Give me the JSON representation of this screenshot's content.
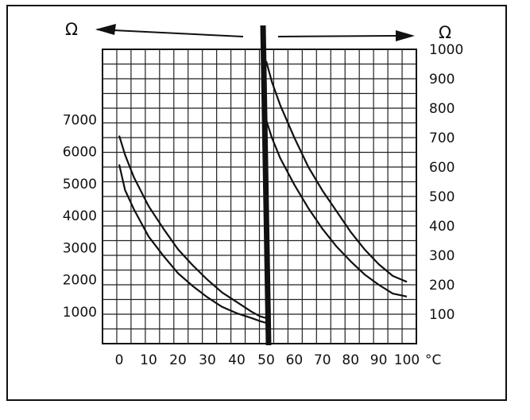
{
  "chart_data": {
    "type": "line",
    "title": "",
    "grid": true,
    "x_unit_label": "°C",
    "x_ticks": [
      0,
      10,
      20,
      30,
      40,
      50,
      60,
      70,
      80,
      90,
      100
    ],
    "x_tick_labels": [
      "0",
      "10",
      "20",
      "30",
      "40",
      "50",
      "60",
      "70",
      "80",
      "90",
      "100"
    ],
    "left_axis": {
      "unit_label": "Ω",
      "x_range": [
        0,
        50
      ],
      "ylim": [
        0,
        9200
      ],
      "ticks": [
        1000,
        2000,
        3000,
        4000,
        5000,
        6000,
        7000
      ],
      "tick_labels": [
        "1000",
        "2000",
        "3000",
        "4000",
        "5000",
        "6000",
        "7000"
      ]
    },
    "right_axis": {
      "unit_label": "Ω",
      "x_range": [
        50,
        100
      ],
      "ylim": [
        0,
        1000
      ],
      "ticks": [
        100,
        200,
        300,
        400,
        500,
        600,
        700,
        800,
        900,
        1000
      ],
      "tick_labels": [
        "100",
        "200",
        "300",
        "400",
        "500",
        "600",
        "700",
        "800",
        "900",
        "1000"
      ]
    },
    "series": [
      {
        "axis": "left",
        "color": "#111111",
        "points": [
          [
            0,
            6500
          ],
          [
            2,
            5900
          ],
          [
            5,
            5200
          ],
          [
            10,
            4300
          ],
          [
            15,
            3600
          ],
          [
            20,
            2950
          ],
          [
            25,
            2450
          ],
          [
            30,
            2000
          ],
          [
            35,
            1600
          ],
          [
            40,
            1300
          ],
          [
            45,
            1000
          ],
          [
            48,
            850
          ],
          [
            50,
            800
          ]
        ]
      },
      {
        "axis": "left",
        "color": "#111111",
        "points": [
          [
            0,
            5600
          ],
          [
            2,
            4800
          ],
          [
            5,
            4200
          ],
          [
            10,
            3350
          ],
          [
            15,
            2750
          ],
          [
            20,
            2200
          ],
          [
            25,
            1800
          ],
          [
            30,
            1450
          ],
          [
            35,
            1150
          ],
          [
            40,
            950
          ],
          [
            45,
            800
          ],
          [
            48,
            700
          ],
          [
            50,
            650
          ]
        ]
      },
      {
        "axis": "right",
        "color": "#111111",
        "points": [
          [
            50,
            960
          ],
          [
            52,
            890
          ],
          [
            55,
            810
          ],
          [
            60,
            700
          ],
          [
            65,
            600
          ],
          [
            70,
            520
          ],
          [
            75,
            450
          ],
          [
            80,
            380
          ],
          [
            85,
            320
          ],
          [
            90,
            270
          ],
          [
            95,
            230
          ],
          [
            100,
            210
          ]
        ]
      },
      {
        "axis": "right",
        "color": "#111111",
        "points": [
          [
            50,
            760
          ],
          [
            52,
            700
          ],
          [
            55,
            630
          ],
          [
            60,
            540
          ],
          [
            65,
            460
          ],
          [
            70,
            390
          ],
          [
            75,
            330
          ],
          [
            80,
            280
          ],
          [
            85,
            235
          ],
          [
            90,
            200
          ],
          [
            95,
            170
          ],
          [
            100,
            160
          ]
        ]
      }
    ]
  }
}
